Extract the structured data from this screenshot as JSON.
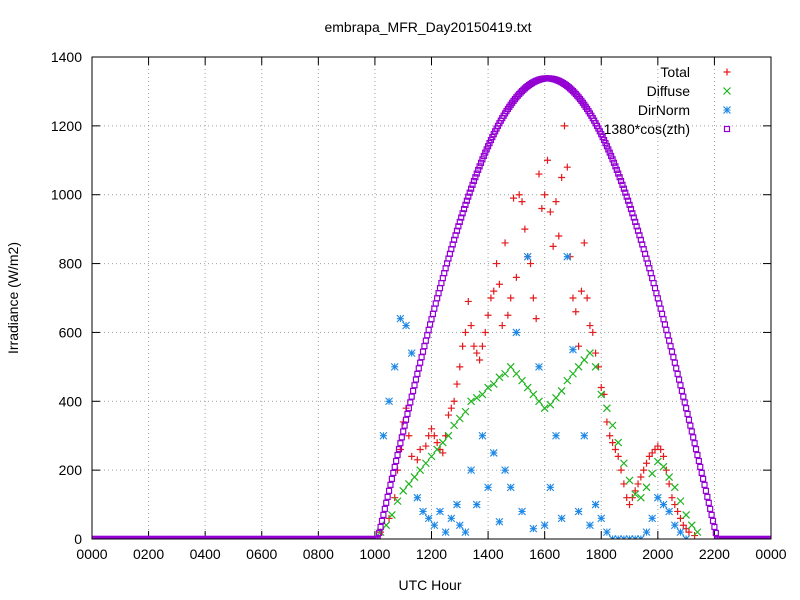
{
  "chart_data": {
    "type": "scatter",
    "title": "embrapa_MFR_Day20150419.txt",
    "xlabel": "UTC Hour",
    "ylabel": "Irradiance (W/m2)",
    "xlim": [
      0,
      24
    ],
    "ylim": [
      0,
      1400
    ],
    "x_ticks": [
      {
        "value": 0,
        "label": "0000"
      },
      {
        "value": 2,
        "label": "0200"
      },
      {
        "value": 4,
        "label": "0400"
      },
      {
        "value": 6,
        "label": "0600"
      },
      {
        "value": 8,
        "label": "0800"
      },
      {
        "value": 10,
        "label": "1000"
      },
      {
        "value": 12,
        "label": "1200"
      },
      {
        "value": 14,
        "label": "1400"
      },
      {
        "value": 16,
        "label": "1600"
      },
      {
        "value": 18,
        "label": "1800"
      },
      {
        "value": 20,
        "label": "2000"
      },
      {
        "value": 22,
        "label": "2200"
      },
      {
        "value": 24,
        "label": "0000"
      }
    ],
    "y_ticks": [
      0,
      200,
      400,
      600,
      800,
      1000,
      1200,
      1400
    ],
    "grid": true,
    "legend_position": "top-right",
    "series": [
      {
        "name": "Total",
        "marker": "plus",
        "color": "#e41a1c",
        "points": [
          [
            10.2,
            20
          ],
          [
            10.5,
            60
          ],
          [
            10.7,
            120
          ],
          [
            10.8,
            200
          ],
          [
            10.9,
            260
          ],
          [
            11.0,
            340
          ],
          [
            11.1,
            380
          ],
          [
            11.2,
            300
          ],
          [
            11.3,
            240
          ],
          [
            11.5,
            230
          ],
          [
            11.6,
            260
          ],
          [
            11.8,
            270
          ],
          [
            11.9,
            300
          ],
          [
            12.0,
            320
          ],
          [
            12.1,
            300
          ],
          [
            12.2,
            280
          ],
          [
            12.3,
            260
          ],
          [
            12.4,
            250
          ],
          [
            12.5,
            300
          ],
          [
            12.6,
            360
          ],
          [
            12.7,
            380
          ],
          [
            12.8,
            400
          ],
          [
            12.9,
            450
          ],
          [
            13.0,
            500
          ],
          [
            13.1,
            560
          ],
          [
            13.2,
            600
          ],
          [
            13.3,
            690
          ],
          [
            13.4,
            620
          ],
          [
            13.5,
            560
          ],
          [
            13.6,
            540
          ],
          [
            13.7,
            520
          ],
          [
            13.8,
            560
          ],
          [
            13.9,
            600
          ],
          [
            14.0,
            650
          ],
          [
            14.1,
            700
          ],
          [
            14.2,
            720
          ],
          [
            14.3,
            800
          ],
          [
            14.4,
            740
          ],
          [
            14.5,
            620
          ],
          [
            14.6,
            860
          ],
          [
            14.7,
            650
          ],
          [
            14.8,
            700
          ],
          [
            14.9,
            990
          ],
          [
            15.0,
            760
          ],
          [
            15.1,
            1000
          ],
          [
            15.2,
            980
          ],
          [
            15.3,
            900
          ],
          [
            15.4,
            820
          ],
          [
            15.5,
            800
          ],
          [
            15.6,
            700
          ],
          [
            15.7,
            640
          ],
          [
            15.8,
            1060
          ],
          [
            15.9,
            960
          ],
          [
            16.0,
            1000
          ],
          [
            16.1,
            1100
          ],
          [
            16.2,
            950
          ],
          [
            16.3,
            850
          ],
          [
            16.4,
            980
          ],
          [
            16.5,
            880
          ],
          [
            16.6,
            1050
          ],
          [
            16.7,
            1200
          ],
          [
            16.8,
            1080
          ],
          [
            16.9,
            820
          ],
          [
            17.0,
            700
          ],
          [
            17.1,
            660
          ],
          [
            17.2,
            560
          ],
          [
            17.3,
            720
          ],
          [
            17.4,
            860
          ],
          [
            17.5,
            700
          ],
          [
            17.6,
            620
          ],
          [
            17.7,
            600
          ],
          [
            17.8,
            540
          ],
          [
            17.9,
            500
          ],
          [
            18.0,
            440
          ],
          [
            18.1,
            420
          ],
          [
            18.2,
            340
          ],
          [
            18.3,
            300
          ],
          [
            18.4,
            280
          ],
          [
            18.5,
            260
          ],
          [
            18.6,
            240
          ],
          [
            18.7,
            200
          ],
          [
            18.8,
            160
          ],
          [
            18.9,
            120
          ],
          [
            19.0,
            100
          ],
          [
            19.1,
            120
          ],
          [
            19.2,
            140
          ],
          [
            19.3,
            160
          ],
          [
            19.4,
            180
          ],
          [
            19.5,
            200
          ],
          [
            19.6,
            220
          ],
          [
            19.7,
            240
          ],
          [
            19.8,
            250
          ],
          [
            19.9,
            260
          ],
          [
            20.0,
            270
          ],
          [
            20.1,
            260
          ],
          [
            20.2,
            240
          ],
          [
            20.3,
            200
          ],
          [
            20.4,
            160
          ],
          [
            20.5,
            120
          ],
          [
            20.6,
            100
          ],
          [
            20.7,
            80
          ],
          [
            20.8,
            60
          ],
          [
            20.9,
            40
          ],
          [
            21.0,
            30
          ],
          [
            21.1,
            20
          ],
          [
            21.3,
            10
          ]
        ]
      },
      {
        "name": "Diffuse",
        "marker": "cross",
        "color": "#1eb41e",
        "points": [
          [
            10.2,
            20
          ],
          [
            10.4,
            40
          ],
          [
            10.6,
            70
          ],
          [
            10.8,
            110
          ],
          [
            11.0,
            140
          ],
          [
            11.2,
            160
          ],
          [
            11.4,
            180
          ],
          [
            11.6,
            200
          ],
          [
            11.8,
            220
          ],
          [
            12.0,
            240
          ],
          [
            12.2,
            260
          ],
          [
            12.4,
            280
          ],
          [
            12.6,
            300
          ],
          [
            12.8,
            330
          ],
          [
            13.0,
            350
          ],
          [
            13.2,
            370
          ],
          [
            13.4,
            400
          ],
          [
            13.6,
            410
          ],
          [
            13.8,
            420
          ],
          [
            14.0,
            440
          ],
          [
            14.2,
            450
          ],
          [
            14.4,
            470
          ],
          [
            14.6,
            480
          ],
          [
            14.8,
            500
          ],
          [
            15.0,
            480
          ],
          [
            15.2,
            460
          ],
          [
            15.4,
            440
          ],
          [
            15.6,
            420
          ],
          [
            15.8,
            400
          ],
          [
            16.0,
            380
          ],
          [
            16.2,
            390
          ],
          [
            16.4,
            410
          ],
          [
            16.6,
            430
          ],
          [
            16.8,
            460
          ],
          [
            17.0,
            480
          ],
          [
            17.2,
            500
          ],
          [
            17.4,
            520
          ],
          [
            17.6,
            540
          ],
          [
            17.8,
            500
          ],
          [
            18.0,
            420
          ],
          [
            18.2,
            380
          ],
          [
            18.4,
            330
          ],
          [
            18.6,
            280
          ],
          [
            18.8,
            220
          ],
          [
            19.0,
            170
          ],
          [
            19.2,
            130
          ],
          [
            19.4,
            120
          ],
          [
            19.6,
            150
          ],
          [
            19.8,
            190
          ],
          [
            20.0,
            225
          ],
          [
            20.2,
            210
          ],
          [
            20.4,
            180
          ],
          [
            20.6,
            150
          ],
          [
            20.8,
            110
          ],
          [
            21.0,
            70
          ],
          [
            21.2,
            40
          ],
          [
            21.4,
            20
          ]
        ]
      },
      {
        "name": "DirNorm",
        "marker": "star",
        "color": "#1e88e5",
        "points": [
          [
            10.3,
            300
          ],
          [
            10.5,
            400
          ],
          [
            10.7,
            500
          ],
          [
            10.9,
            640
          ],
          [
            11.1,
            620
          ],
          [
            11.3,
            540
          ],
          [
            11.5,
            120
          ],
          [
            11.7,
            80
          ],
          [
            11.9,
            60
          ],
          [
            12.1,
            40
          ],
          [
            12.3,
            80
          ],
          [
            12.5,
            20
          ],
          [
            12.7,
            60
          ],
          [
            12.9,
            100
          ],
          [
            13.0,
            40
          ],
          [
            13.2,
            20
          ],
          [
            13.4,
            200
          ],
          [
            13.6,
            100
          ],
          [
            13.8,
            300
          ],
          [
            14.0,
            150
          ],
          [
            14.2,
            250
          ],
          [
            14.4,
            50
          ],
          [
            14.6,
            200
          ],
          [
            14.8,
            150
          ],
          [
            15.0,
            600
          ],
          [
            15.2,
            80
          ],
          [
            15.4,
            820
          ],
          [
            15.6,
            30
          ],
          [
            15.8,
            500
          ],
          [
            16.0,
            40
          ],
          [
            16.2,
            150
          ],
          [
            16.4,
            300
          ],
          [
            16.6,
            60
          ],
          [
            16.8,
            820
          ],
          [
            17.0,
            550
          ],
          [
            17.2,
            80
          ],
          [
            17.4,
            300
          ],
          [
            17.6,
            40
          ],
          [
            17.8,
            100
          ],
          [
            18.0,
            60
          ],
          [
            18.2,
            20
          ],
          [
            18.4,
            0
          ],
          [
            18.6,
            0
          ],
          [
            18.8,
            0
          ],
          [
            19.0,
            0
          ],
          [
            19.2,
            0
          ],
          [
            19.4,
            0
          ],
          [
            19.6,
            20
          ],
          [
            19.8,
            60
          ],
          [
            20.0,
            120
          ],
          [
            20.2,
            100
          ],
          [
            20.4,
            80
          ],
          [
            20.6,
            40
          ],
          [
            20.8,
            20
          ],
          [
            21.0,
            0
          ]
        ]
      },
      {
        "name": "1380*cos(zth)",
        "marker": "square",
        "color": "#9400d3",
        "peak": 1338,
        "x_peak": 16.1,
        "x_rise": 10.1,
        "x_set": 22.1
      }
    ]
  }
}
